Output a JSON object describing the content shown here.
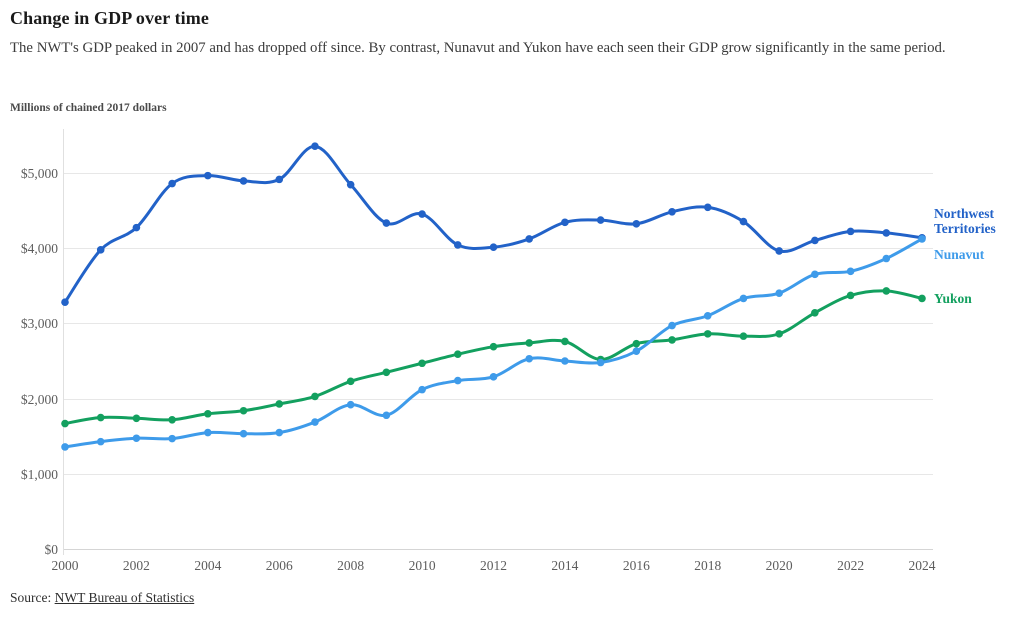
{
  "header": {
    "title": "Change in GDP over time",
    "subtitle": "The NWT's GDP peaked in 2007 and has dropped off since. By contrast, Nunavut and Yukon have each seen their GDP grow significantly in the same period."
  },
  "chart_data": {
    "type": "line",
    "title": "Change in GDP over time",
    "ylabel": "Millions of chained 2017 dollars",
    "xlabel": "",
    "x": [
      2000,
      2001,
      2002,
      2003,
      2004,
      2005,
      2006,
      2007,
      2008,
      2009,
      2010,
      2011,
      2012,
      2013,
      2014,
      2015,
      2016,
      2017,
      2018,
      2019,
      2020,
      2021,
      2022,
      2023,
      2024
    ],
    "series": [
      {
        "name": "Northwest Territories",
        "color": "#2262c8",
        "values": [
          3280,
          3975,
          4270,
          4855,
          4960,
          4890,
          4910,
          5350,
          4840,
          4330,
          4450,
          4040,
          4010,
          4120,
          4340,
          4370,
          4320,
          4480,
          4540,
          4350,
          3960,
          4100,
          4220,
          4200,
          4135
        ]
      },
      {
        "name": "Nunavut",
        "color": "#3e9bea",
        "values": [
          1360,
          1430,
          1475,
          1470,
          1550,
          1535,
          1550,
          1690,
          1920,
          1780,
          2120,
          2240,
          2290,
          2530,
          2500,
          2480,
          2630,
          2970,
          3100,
          3330,
          3400,
          3650,
          3690,
          3860,
          4120
        ]
      },
      {
        "name": "Yukon",
        "color": "#13a05f",
        "values": [
          1670,
          1750,
          1740,
          1720,
          1800,
          1840,
          1930,
          2030,
          2230,
          2350,
          2470,
          2590,
          2690,
          2740,
          2760,
          2520,
          2730,
          2780,
          2860,
          2830,
          2860,
          3140,
          3370,
          3430,
          3330
        ]
      }
    ],
    "x_ticks": [
      "2000",
      "2002",
      "2004",
      "2006",
      "2008",
      "2010",
      "2012",
      "2014",
      "2016",
      "2018",
      "2020",
      "2022",
      "2024"
    ],
    "y_ticks": [
      {
        "label": "$0",
        "value": 0
      },
      {
        "label": "$1,000",
        "value": 1000
      },
      {
        "label": "$2,000",
        "value": 2000
      },
      {
        "label": "$3,000",
        "value": 3000
      },
      {
        "label": "$4,000",
        "value": 4000
      },
      {
        "label": "$5,000",
        "value": 5000
      }
    ],
    "xlim": [
      2000,
      2024
    ],
    "ylim": [
      0,
      5500
    ],
    "grid": true,
    "legend_position": "right",
    "marker": "circle"
  },
  "footer": {
    "source_prefix": "Source:",
    "source_link_text": "NWT Bureau of Statistics"
  }
}
